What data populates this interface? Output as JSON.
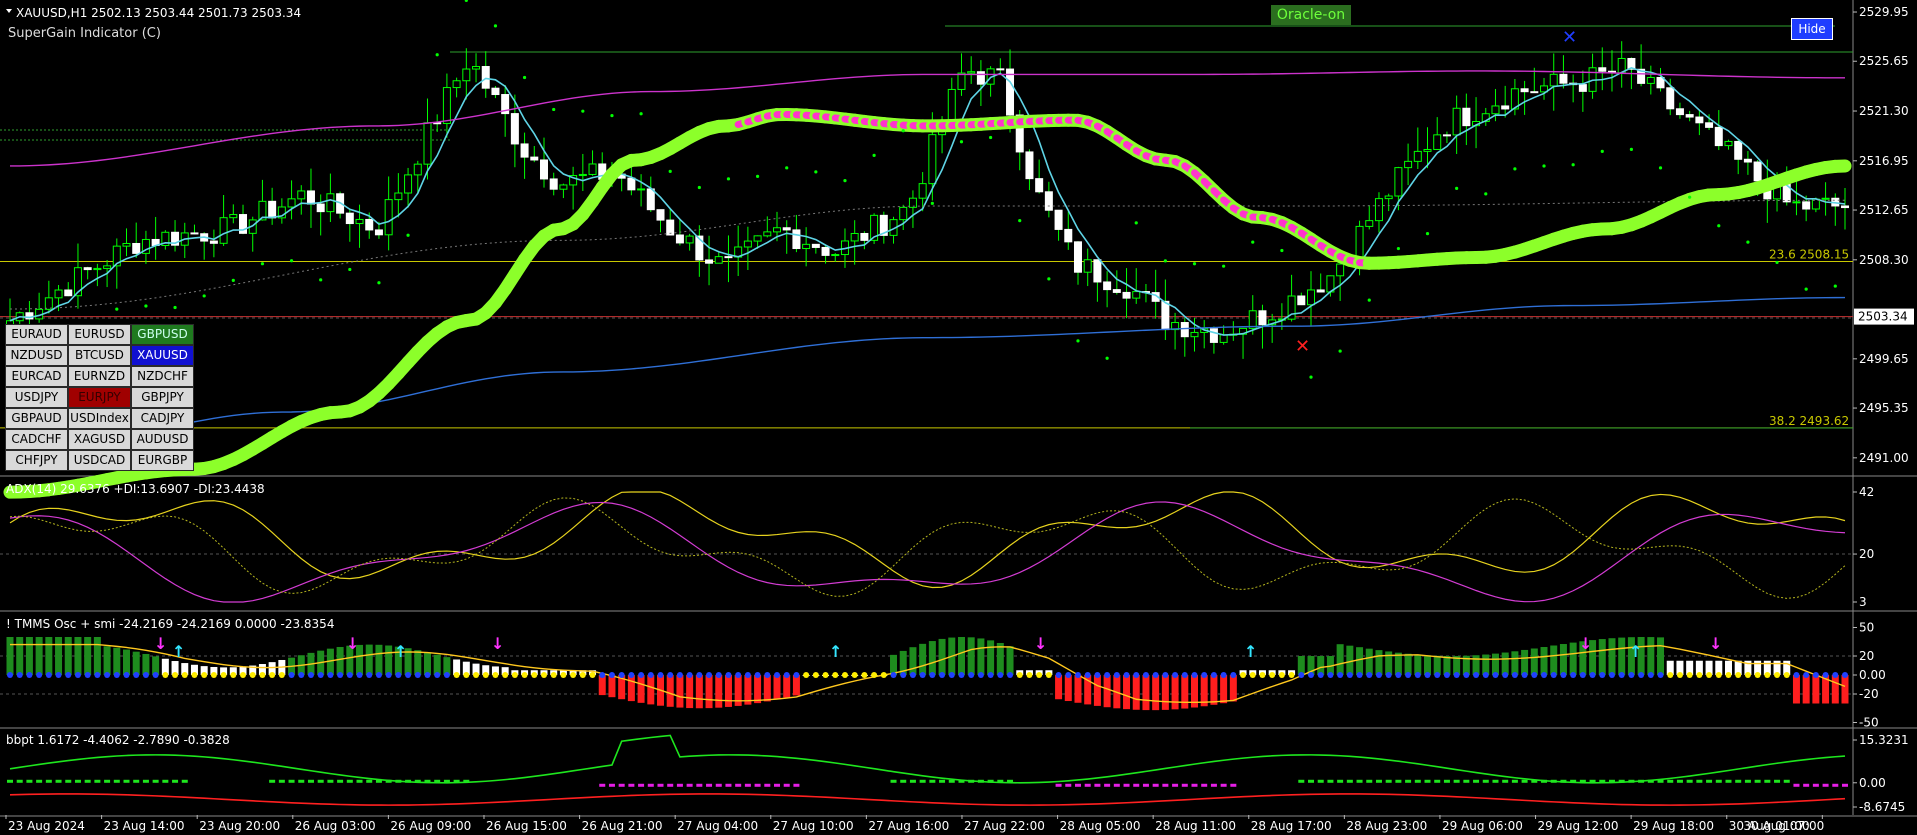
{
  "main": {
    "symbol_info": "XAUUSD,H1  2502.13 2503.44 2501.73 2503.34",
    "indicator_name": "SuperGain Indicator (C)",
    "oracle_label": "Oracle-on",
    "hide_label": "Hide",
    "current_price": "2503.34",
    "price_axis": [
      "2529.95",
      "2525.65",
      "2521.30",
      "2516.95",
      "2512.65",
      "2508.30",
      "2499.65",
      "2495.35",
      "2491.00"
    ],
    "fib_labels": [
      {
        "text": "23.6 2508.15",
        "price": 2508.15
      },
      {
        "text": "38.2 2493.62",
        "price": 2493.62
      }
    ],
    "price_min": 2489.5,
    "price_max": 2531.0
  },
  "symbols": [
    {
      "label": "EURAUD",
      "style": "plain"
    },
    {
      "label": "EURUSD",
      "style": "plain"
    },
    {
      "label": "GBPUSD",
      "style": "green"
    },
    {
      "label": "NZDUSD",
      "style": "plain"
    },
    {
      "label": "BTCUSD",
      "style": "plain"
    },
    {
      "label": "XAUUSD",
      "style": "blue"
    },
    {
      "label": "EURCAD",
      "style": "plain"
    },
    {
      "label": "EURNZD",
      "style": "plain"
    },
    {
      "label": "NZDCHF",
      "style": "plain"
    },
    {
      "label": "USDJPY",
      "style": "plain"
    },
    {
      "label": "EURJPY",
      "style": "red"
    },
    {
      "label": "GBPJPY",
      "style": "plain"
    },
    {
      "label": "GBPAUD",
      "style": "plain"
    },
    {
      "label": "USDIndex",
      "style": "plain"
    },
    {
      "label": "CADJPY",
      "style": "plain"
    },
    {
      "label": "CADCHF",
      "style": "plain"
    },
    {
      "label": "XAGUSD",
      "style": "plain"
    },
    {
      "label": "AUDUSD",
      "style": "plain"
    },
    {
      "label": "CHFJPY",
      "style": "plain"
    },
    {
      "label": "USDCAD",
      "style": "plain"
    },
    {
      "label": "EURGBP",
      "style": "plain"
    }
  ],
  "adx": {
    "label": "ADX(14) 29.6376 +DI:13.6907 -DI:23.4438",
    "axis": [
      "42",
      "20",
      "3"
    ]
  },
  "tmms": {
    "label": "! TMMS Osc + smi -24.2169 -24.2169 0.0000 -23.8354",
    "axis": [
      "50",
      "20",
      "0.00",
      "-20",
      "-50"
    ]
  },
  "bbpt": {
    "label": "bbpt 1.6172 -4.4062 -2.7890 -0.3828",
    "axis": [
      "15.3231",
      "0.00",
      "-8.6745"
    ]
  },
  "time_axis": [
    "23 Aug 2024",
    "23 Aug 14:00",
    "23 Aug 20:00",
    "26 Aug 03:00",
    "26 Aug 09:00",
    "26 Aug 15:00",
    "26 Aug 21:00",
    "27 Aug 04:00",
    "27 Aug 10:00",
    "27 Aug 16:00",
    "27 Aug 22:00",
    "28 Aug 05:00",
    "28 Aug 11:00",
    "28 Aug 17:00",
    "28 Aug 23:00",
    "29 Aug 06:00",
    "29 Aug 12:00",
    "29 Aug 18:00",
    "30 Aug 01:00",
    "30 Aug 07:00"
  ],
  "colors": {
    "bull": "#00ff00",
    "bear": "#ffffff",
    "fast_ma": "#5fd4e6",
    "slow_ma": "#cc33cc",
    "long_ma": "#2f6fd6",
    "supergain": "#8cff2a",
    "supergain_bear": "#ff33cc",
    "fib": "#c8c800",
    "grid": "#2a2a2a"
  }
}
